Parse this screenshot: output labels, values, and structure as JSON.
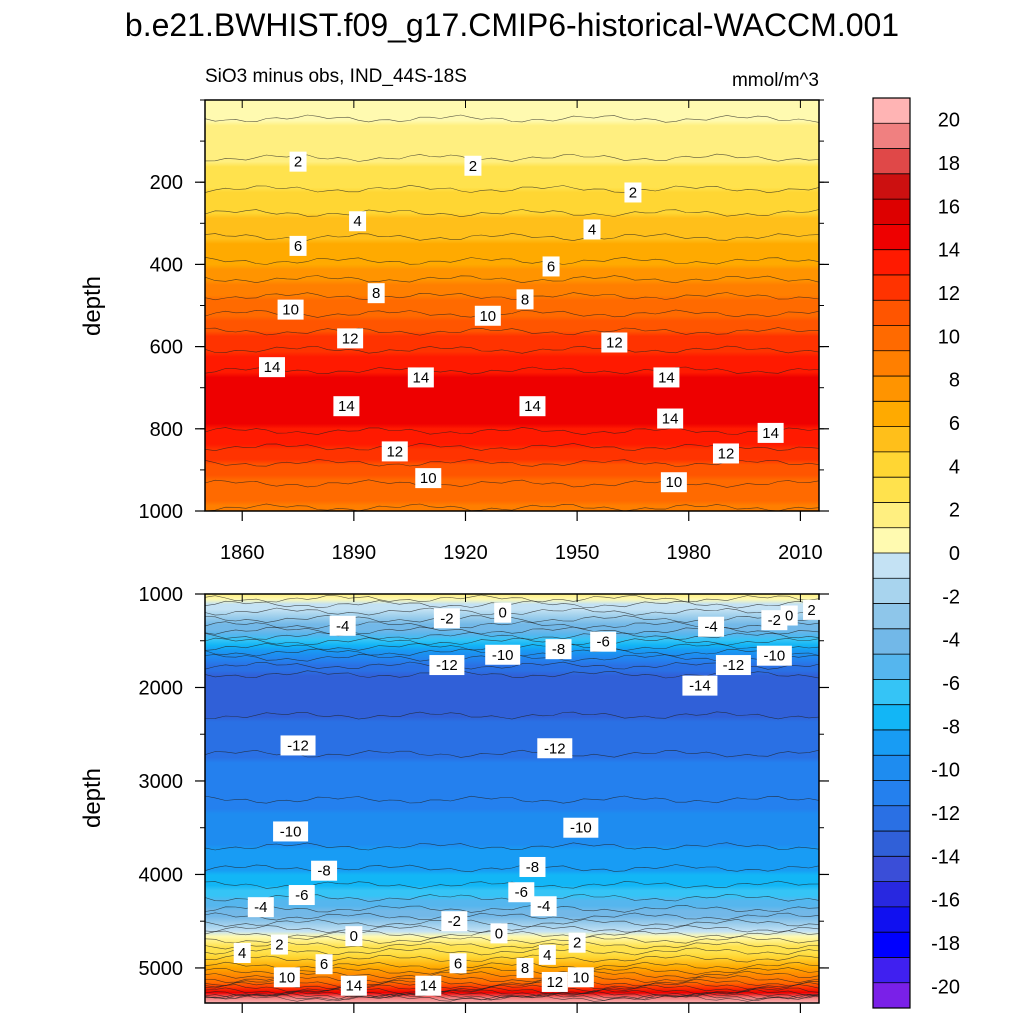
{
  "chart_data": {
    "type": "heatmap",
    "title": "b.e21.BWHIST.f09_g17.CMIP6-historical-WACCM.001",
    "subtitle_left": "SiO3 minus obs, IND_44S-18S",
    "units": "mmol/m^3",
    "ylabel": "depth",
    "colorbar": {
      "levels": [
        20,
        18,
        16,
        14,
        12,
        10,
        8,
        6,
        4,
        2,
        0,
        -2,
        -4,
        -6,
        -8,
        -10,
        -12,
        -14,
        -16,
        -18,
        -20
      ],
      "labels": [
        "20",
        "18",
        "16",
        "14",
        "12",
        "10",
        "8",
        "6",
        "4",
        "2",
        "0",
        "-2",
        "-4",
        "-6",
        "-8",
        "-10",
        "-12",
        "-14",
        "-16",
        "-18",
        "-20"
      ],
      "colors": [
        "#ffb4b4",
        "#f08080",
        "#e04848",
        "#cc1010",
        "#dd0000",
        "#ee0000",
        "#ff1a00",
        "#ff3300",
        "#ff5500",
        "#ff6a00",
        "#ff7f00",
        "#ff9400",
        "#ffaa00",
        "#ffbf1a",
        "#ffd633",
        "#ffe24d",
        "#ffef80",
        "#fffab0",
        "#c4e2f4",
        "#a8d4ee",
        "#8ec6ea",
        "#72b8e8",
        "#55b6ee",
        "#35c4f6",
        "#12b6f6",
        "#189cf4",
        "#1e8cf0",
        "#2480ee",
        "#2a70e4",
        "#3060d8",
        "#3a4ed8",
        "#2828e0",
        "#1010f0",
        "#0000ff",
        "#4020f0",
        "#7a20e8"
      ]
    },
    "panels": [
      {
        "name": "upper",
        "x_ticks": [
          1860,
          1890,
          1920,
          1950,
          1980,
          2010
        ],
        "x_tick_labels": [
          "1860",
          "1890",
          "1920",
          "1950",
          "1980",
          "2010"
        ],
        "xlim": [
          1850,
          2015
        ],
        "y_ticks": [
          200,
          400,
          600,
          800,
          1000
        ],
        "y_tick_labels": [
          "200",
          "400",
          "600",
          "800",
          "1000"
        ],
        "ylim": [
          0,
          1000
        ],
        "profile": {
          "depth": [
            0,
            100,
            200,
            300,
            400,
            500,
            600,
            700,
            800,
            900,
            1000
          ],
          "value": [
            0.5,
            1.6,
            3.0,
            5.0,
            7.0,
            9.8,
            12.5,
            14.8,
            14.0,
            11.0,
            9.0
          ]
        },
        "contour_labels": [
          {
            "text": "2",
            "x": 1875,
            "y": 150
          },
          {
            "text": "2",
            "x": 1922,
            "y": 160
          },
          {
            "text": "2",
            "x": 1965,
            "y": 225
          },
          {
            "text": "4",
            "x": 1891,
            "y": 295
          },
          {
            "text": "4",
            "x": 1954,
            "y": 315
          },
          {
            "text": "6",
            "x": 1875,
            "y": 355
          },
          {
            "text": "6",
            "x": 1943,
            "y": 405
          },
          {
            "text": "8",
            "x": 1896,
            "y": 470
          },
          {
            "text": "8",
            "x": 1936,
            "y": 485
          },
          {
            "text": "10",
            "x": 1873,
            "y": 510
          },
          {
            "text": "10",
            "x": 1926,
            "y": 525
          },
          {
            "text": "12",
            "x": 1889,
            "y": 580
          },
          {
            "text": "12",
            "x": 1960,
            "y": 590
          },
          {
            "text": "14",
            "x": 1868,
            "y": 650
          },
          {
            "text": "14",
            "x": 1908,
            "y": 675
          },
          {
            "text": "14",
            "x": 1974,
            "y": 675
          },
          {
            "text": "14",
            "x": 1888,
            "y": 745
          },
          {
            "text": "14",
            "x": 1938,
            "y": 745
          },
          {
            "text": "14",
            "x": 1975,
            "y": 775
          },
          {
            "text": "14",
            "x": 2002,
            "y": 810
          },
          {
            "text": "12",
            "x": 1901,
            "y": 855
          },
          {
            "text": "12",
            "x": 1990,
            "y": 860
          },
          {
            "text": "10",
            "x": 1910,
            "y": 920
          },
          {
            "text": "10",
            "x": 1976,
            "y": 930
          }
        ]
      },
      {
        "name": "lower",
        "x_ticks": [
          1860,
          1890,
          1920,
          1950,
          1980,
          2010
        ],
        "x_tick_labels": [
          "",
          "",
          "",
          "",
          "",
          ""
        ],
        "xlim": [
          1850,
          2015
        ],
        "y_ticks": [
          1000,
          2000,
          3000,
          4000,
          5000
        ],
        "y_tick_labels": [
          "1000",
          "2000",
          "3000",
          "4000",
          "5000"
        ],
        "ylim": [
          1000,
          5375
        ],
        "profile": {
          "depth": [
            1000,
            1100,
            1300,
            1500,
            1700,
            1900,
            2300,
            3000,
            3600,
            4000,
            4200,
            4400,
            4550,
            4650,
            4800,
            5000,
            5150,
            5250,
            5300,
            5330,
            5375
          ],
          "value": [
            2.0,
            0.0,
            -3.0,
            -7.0,
            -11.0,
            -13.5,
            -13.0,
            -11.0,
            -10.0,
            -8.0,
            -6.5,
            -4.5,
            -2.0,
            0.0,
            3.0,
            6.0,
            10.0,
            14.0,
            17.0,
            21.0,
            21.0
          ]
        },
        "contour_labels": [
          {
            "text": "-4",
            "x": 1887,
            "y": 1340
          },
          {
            "text": "-2",
            "x": 1915,
            "y": 1260
          },
          {
            "text": "0",
            "x": 1930,
            "y": 1200
          },
          {
            "text": "-10",
            "x": 1930,
            "y": 1650
          },
          {
            "text": "-12",
            "x": 1915,
            "y": 1760
          },
          {
            "text": "-8",
            "x": 1945,
            "y": 1590
          },
          {
            "text": "-6",
            "x": 1957,
            "y": 1510
          },
          {
            "text": "-4",
            "x": 1986,
            "y": 1350
          },
          {
            "text": "-2",
            "x": 2003,
            "y": 1280
          },
          {
            "text": "0",
            "x": 2007,
            "y": 1230
          },
          {
            "text": "2",
            "x": 2013,
            "y": 1170
          },
          {
            "text": "-10",
            "x": 2003,
            "y": 1660
          },
          {
            "text": "-12",
            "x": 1992,
            "y": 1760
          },
          {
            "text": "-14",
            "x": 1983,
            "y": 1980
          },
          {
            "text": "-12",
            "x": 1875,
            "y": 2620
          },
          {
            "text": "-12",
            "x": 1944,
            "y": 2650
          },
          {
            "text": "-10",
            "x": 1873,
            "y": 3540
          },
          {
            "text": "-10",
            "x": 1951,
            "y": 3500
          },
          {
            "text": "-8",
            "x": 1882,
            "y": 3960
          },
          {
            "text": "-8",
            "x": 1938,
            "y": 3920
          },
          {
            "text": "-6",
            "x": 1876,
            "y": 4220
          },
          {
            "text": "-6",
            "x": 1935,
            "y": 4190
          },
          {
            "text": "-4",
            "x": 1865,
            "y": 4350
          },
          {
            "text": "-4",
            "x": 1941,
            "y": 4340
          },
          {
            "text": "-2",
            "x": 1917,
            "y": 4500
          },
          {
            "text": "0",
            "x": 1890,
            "y": 4660
          },
          {
            "text": "0",
            "x": 1929,
            "y": 4630
          },
          {
            "text": "2",
            "x": 1870,
            "y": 4750
          },
          {
            "text": "2",
            "x": 1950,
            "y": 4730
          },
          {
            "text": "4",
            "x": 1860,
            "y": 4840
          },
          {
            "text": "4",
            "x": 1942,
            "y": 4860
          },
          {
            "text": "6",
            "x": 1882,
            "y": 4960
          },
          {
            "text": "6",
            "x": 1918,
            "y": 4950
          },
          {
            "text": "8",
            "x": 1936,
            "y": 5000
          },
          {
            "text": "10",
            "x": 1872,
            "y": 5100
          },
          {
            "text": "10",
            "x": 1951,
            "y": 5100
          },
          {
            "text": "12",
            "x": 1944,
            "y": 5150
          },
          {
            "text": "14",
            "x": 1890,
            "y": 5190
          },
          {
            "text": "14",
            "x": 1910,
            "y": 5190
          }
        ]
      }
    ]
  }
}
